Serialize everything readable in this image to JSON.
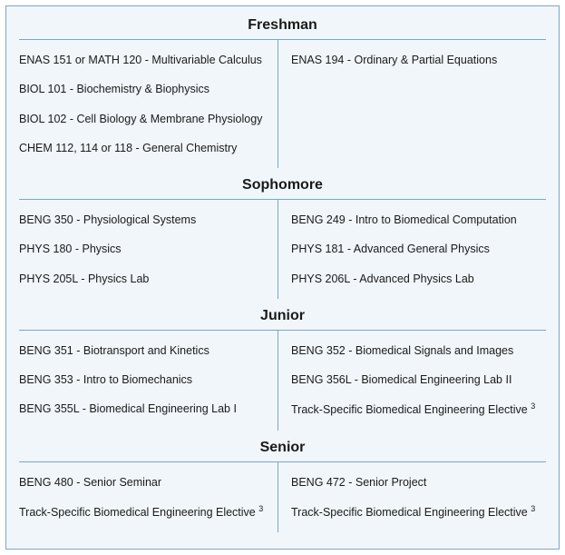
{
  "colors": {
    "background": "#f0f6fa",
    "border": "#7da6c4",
    "text": "#1a1a1a"
  },
  "years": [
    {
      "title": "Freshman",
      "left": [
        "ENAS 151 or MATH 120 - Multivariable Calculus",
        "BIOL 101 - Biochemistry & Biophysics",
        "BIOL 102 - Cell Biology & Membrane Physiology",
        "CHEM 112, 114 or 118 - General Chemistry"
      ],
      "right": [
        "ENAS 194 - Ordinary & Partial Equations"
      ]
    },
    {
      "title": "Sophomore",
      "left": [
        "BENG 350 - Physiological Systems",
        "PHYS 180 - Physics",
        "PHYS 205L - Physics Lab"
      ],
      "right": [
        "BENG 249 - Intro to Biomedical Computation",
        "PHYS 181 - Advanced General Physics",
        "PHYS 206L - Advanced Physics Lab"
      ]
    },
    {
      "title": "Junior",
      "left": [
        "BENG 351 - Biotransport and Kinetics",
        "BENG 353 - Intro to Biomechanics",
        "BENG 355L - Biomedical Engineering Lab I"
      ],
      "right": [
        "BENG 352 - Biomedical Signals and Images",
        "BENG 356L - Biomedical Engineering Lab II",
        "Track-Specific Biomedical Engineering Elective ³"
      ]
    },
    {
      "title": "Senior",
      "left": [
        "BENG 480 - Senior Seminar",
        "Track-Specific Biomedical Engineering Elective ³"
      ],
      "right": [
        "BENG 472 - Senior Project",
        "Track-Specific Biomedical Engineering Elective ³"
      ]
    }
  ]
}
